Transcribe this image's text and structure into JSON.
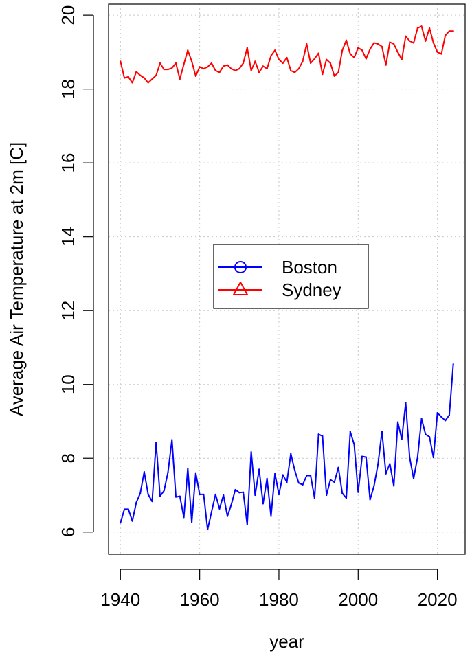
{
  "chart_data": {
    "type": "line",
    "title": "",
    "xlabel": "year",
    "ylabel": "Average Air Temperature at 2m [C]",
    "xlim": [
      1937,
      2027
    ],
    "ylim": [
      5.4,
      20.3
    ],
    "xticks": [
      1940,
      1960,
      1980,
      2000,
      2020
    ],
    "yticks": [
      6,
      8,
      10,
      12,
      14,
      16,
      18,
      20
    ],
    "grid": true,
    "legend": {
      "position": "center"
    },
    "x": [
      1940,
      1941,
      1942,
      1943,
      1944,
      1945,
      1946,
      1947,
      1948,
      1949,
      1950,
      1951,
      1952,
      1953,
      1954,
      1955,
      1956,
      1957,
      1958,
      1959,
      1960,
      1961,
      1962,
      1963,
      1964,
      1965,
      1966,
      1967,
      1968,
      1969,
      1970,
      1971,
      1972,
      1973,
      1974,
      1975,
      1976,
      1977,
      1978,
      1979,
      1980,
      1981,
      1982,
      1983,
      1984,
      1985,
      1986,
      1987,
      1988,
      1989,
      1990,
      1991,
      1992,
      1993,
      1994,
      1995,
      1996,
      1997,
      1998,
      1999,
      2000,
      2001,
      2002,
      2003,
      2004,
      2005,
      2006,
      2007,
      2008,
      2009,
      2010,
      2011,
      2012,
      2013,
      2014,
      2015,
      2016,
      2017,
      2018,
      2019,
      2020,
      2021,
      2022,
      2023,
      2024
    ],
    "series": [
      {
        "name": "Boston",
        "color": "#0000ff",
        "marker": "circle",
        "values": [
          6.25,
          6.62,
          6.62,
          6.3,
          6.8,
          7.05,
          7.63,
          7.02,
          6.83,
          8.42,
          6.97,
          7.12,
          7.62,
          8.5,
          6.95,
          6.97,
          6.4,
          7.72,
          6.27,
          7.6,
          7.02,
          7.02,
          6.07,
          6.55,
          7.02,
          6.63,
          7.0,
          6.43,
          6.75,
          7.15,
          7.07,
          7.08,
          6.2,
          8.17,
          7.0,
          7.7,
          6.77,
          7.45,
          6.43,
          7.58,
          7.02,
          7.55,
          7.35,
          8.12,
          7.67,
          7.33,
          7.28,
          7.53,
          7.53,
          6.92,
          8.65,
          8.6,
          7.0,
          7.42,
          7.35,
          7.75,
          7.05,
          6.92,
          8.72,
          8.37,
          7.08,
          8.05,
          8.03,
          6.88,
          7.25,
          7.83,
          8.73,
          7.58,
          7.85,
          7.25,
          8.98,
          8.52,
          9.5,
          8.02,
          7.45,
          8.03,
          9.07,
          8.65,
          8.58,
          8.02,
          9.23,
          9.12,
          9.02,
          9.17,
          10.55
        ]
      },
      {
        "name": "Sydney",
        "color": "#ff0000",
        "marker": "triangle",
        "values": [
          18.75,
          18.3,
          18.33,
          18.17,
          18.47,
          18.37,
          18.3,
          18.17,
          18.27,
          18.37,
          18.7,
          18.53,
          18.53,
          18.57,
          18.7,
          18.27,
          18.67,
          19.05,
          18.75,
          18.35,
          18.6,
          18.55,
          18.6,
          18.7,
          18.5,
          18.45,
          18.62,
          18.65,
          18.55,
          18.5,
          18.55,
          18.7,
          19.12,
          18.5,
          18.75,
          18.45,
          18.62,
          18.55,
          18.9,
          19.05,
          18.8,
          18.7,
          18.85,
          18.5,
          18.45,
          18.55,
          18.75,
          19.22,
          18.7,
          18.82,
          18.97,
          18.4,
          18.8,
          18.7,
          18.35,
          18.45,
          19.05,
          19.32,
          18.95,
          18.85,
          19.12,
          19.05,
          18.82,
          19.08,
          19.25,
          19.22,
          19.15,
          18.65,
          19.27,
          19.22,
          19.0,
          18.8,
          19.43,
          19.3,
          19.25,
          19.65,
          19.7,
          19.3,
          19.65,
          19.25,
          19.0,
          18.95,
          19.45,
          19.57,
          19.57
        ]
      }
    ]
  }
}
